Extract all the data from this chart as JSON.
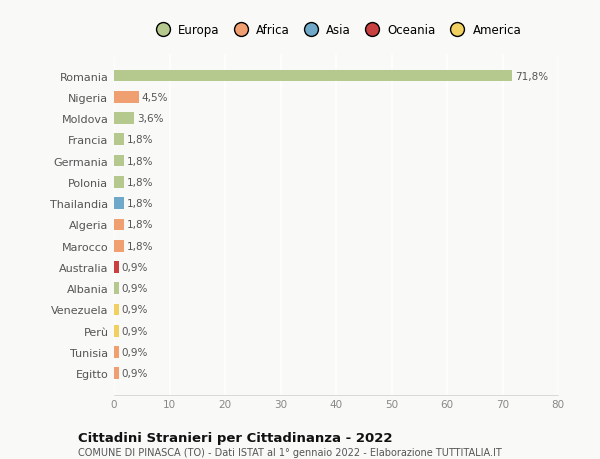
{
  "categories": [
    "Romania",
    "Nigeria",
    "Moldova",
    "Francia",
    "Germania",
    "Polonia",
    "Thailandia",
    "Algeria",
    "Marocco",
    "Australia",
    "Albania",
    "Venezuela",
    "Perù",
    "Tunisia",
    "Egitto"
  ],
  "values": [
    71.8,
    4.5,
    3.6,
    1.8,
    1.8,
    1.8,
    1.8,
    1.8,
    1.8,
    0.9,
    0.9,
    0.9,
    0.9,
    0.9,
    0.9
  ],
  "labels": [
    "71,8%",
    "4,5%",
    "3,6%",
    "1,8%",
    "1,8%",
    "1,8%",
    "1,8%",
    "1,8%",
    "1,8%",
    "0,9%",
    "0,9%",
    "0,9%",
    "0,9%",
    "0,9%",
    "0,9%"
  ],
  "colors": [
    "#b5c98e",
    "#f0a070",
    "#b5c98e",
    "#b5c98e",
    "#b5c98e",
    "#b5c98e",
    "#6fa8c8",
    "#f0a070",
    "#f0a070",
    "#c94040",
    "#b5c98e",
    "#f0d060",
    "#f0d060",
    "#f0a070",
    "#f0a070"
  ],
  "continent_colors": {
    "Europa": "#b5c98e",
    "Africa": "#f0a070",
    "Asia": "#6fa8c8",
    "Oceania": "#c94040",
    "America": "#f0d060"
  },
  "xlim": [
    0,
    80
  ],
  "xticks": [
    0,
    10,
    20,
    30,
    40,
    50,
    60,
    70,
    80
  ],
  "title": "Cittadini Stranieri per Cittadinanza - 2022",
  "subtitle": "COMUNE DI PINASCA (TO) - Dati ISTAT al 1° gennaio 2022 - Elaborazione TUTTITALIA.IT",
  "bg_color": "#f9f9f7",
  "grid_color": "#ffffff",
  "bar_height": 0.55
}
